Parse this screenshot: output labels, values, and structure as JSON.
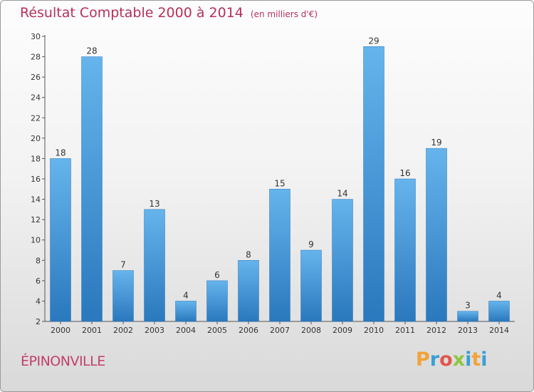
{
  "chart_data": {
    "type": "bar",
    "title": "Résultat Comptable 2000 à 2014",
    "subtitle": "(en milliers d'€)",
    "categories": [
      "2000",
      "2001",
      "2002",
      "2003",
      "2004",
      "2005",
      "2006",
      "2007",
      "2008",
      "2009",
      "2010",
      "2011",
      "2012",
      "2013",
      "2014"
    ],
    "values": [
      18,
      28,
      7,
      13,
      4,
      6,
      8,
      15,
      9,
      14,
      29,
      16,
      19,
      3,
      4
    ],
    "ylim": [
      2,
      30
    ],
    "yticks": [
      2,
      4,
      6,
      8,
      10,
      12,
      14,
      16,
      18,
      20,
      22,
      24,
      26,
      28,
      30
    ],
    "xlabel": "",
    "ylabel": "",
    "bar_color": "#3a8fd8",
    "bar_color_light": "#63b1ea",
    "title_color": "#b5305a"
  },
  "location": "ÉPINONVILLE",
  "brand": {
    "name": "Proxiti",
    "letters": [
      "P",
      "r",
      "o",
      "x",
      "i",
      "t",
      "i"
    ]
  }
}
